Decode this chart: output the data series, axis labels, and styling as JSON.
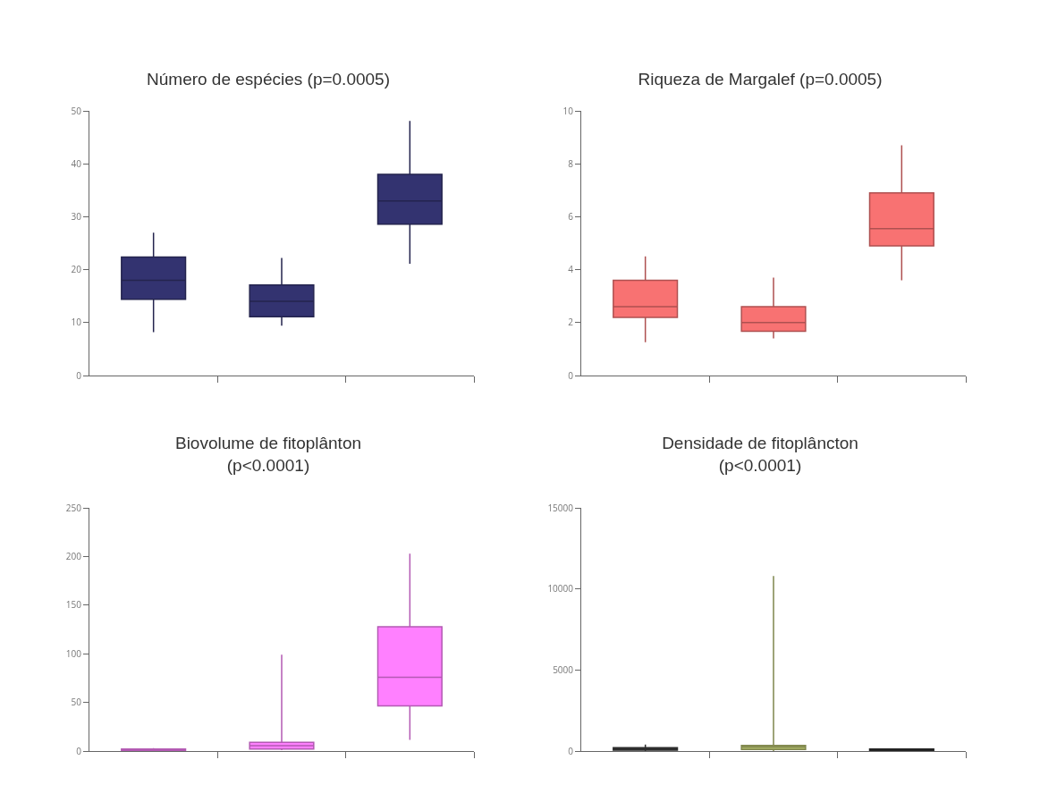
{
  "chart_data": [
    {
      "type": "box",
      "title": "Número de espécies (p=0.0005)",
      "categories": [
        null,
        null,
        null
      ],
      "ylim": [
        0,
        50
      ],
      "yticks": [
        0,
        10,
        20,
        30,
        40,
        50
      ],
      "grid": false,
      "colors": [
        "#333370",
        "#333370",
        "#333370"
      ],
      "boxes": [
        {
          "low": 8.2,
          "q1": 14.4,
          "median": 18,
          "q3": 22.4,
          "high": 27
        },
        {
          "low": 9.4,
          "q1": 11.1,
          "median": 14,
          "q3": 17.1,
          "high": 22.2
        },
        {
          "low": 21.1,
          "q1": 28.6,
          "median": 33,
          "q3": 38,
          "high": 48.1
        }
      ]
    },
    {
      "type": "box",
      "title": "Riqueza de Margalef (p=0.0005)",
      "categories": [
        null,
        null,
        null
      ],
      "ylim": [
        0,
        10
      ],
      "yticks": [
        0,
        2,
        4,
        6,
        8,
        10
      ],
      "grid": false,
      "colors": [
        "#f87272",
        "#f87272",
        "#f87272"
      ],
      "boxes": [
        {
          "low": 1.26,
          "q1": 2.2,
          "median": 2.6,
          "q3": 3.6,
          "high": 4.5
        },
        {
          "low": 1.4,
          "q1": 1.67,
          "median": 2,
          "q3": 2.6,
          "high": 3.7
        },
        {
          "low": 3.6,
          "q1": 4.9,
          "median": 5.55,
          "q3": 6.9,
          "high": 8.7
        }
      ]
    },
    {
      "type": "box",
      "title": "Biovolume de fitoplânton\n(p<0.0001)",
      "categories": [
        null,
        null,
        null
      ],
      "ylim": [
        0,
        250
      ],
      "yticks": [
        0,
        50,
        100,
        150,
        200,
        250
      ],
      "grid": false,
      "colors": [
        "#ff80ff",
        "#ff80ff",
        "#ff80ff"
      ],
      "boxes": [
        {
          "low": 0,
          "q1": 0.5,
          "median": 1,
          "q3": 2,
          "high": 3
        },
        {
          "low": 1,
          "q1": 2,
          "median": 5.5,
          "q3": 9,
          "high": 99
        },
        {
          "low": 11.4,
          "q1": 46.4,
          "median": 75.8,
          "q3": 127.8,
          "high": 203
        }
      ]
    },
    {
      "type": "box",
      "title": "Densidade de fitoplâncton\n(p<0.0001)",
      "categories": [
        null,
        null,
        null
      ],
      "ylim": [
        0,
        15000
      ],
      "yticks": [
        0,
        5000,
        10000,
        15000
      ],
      "grid": false,
      "colors": [
        "#404040",
        "#b5bf6e",
        "#303030"
      ],
      "boxes": [
        {
          "low": 0,
          "q1": 50,
          "median": 120,
          "q3": 200,
          "high": 400
        },
        {
          "low": 0,
          "q1": 100,
          "median": 250,
          "q3": 350,
          "high": 10800
        },
        {
          "low": 0,
          "q1": 20,
          "median": 80,
          "q3": 120,
          "high": 150
        }
      ]
    }
  ]
}
